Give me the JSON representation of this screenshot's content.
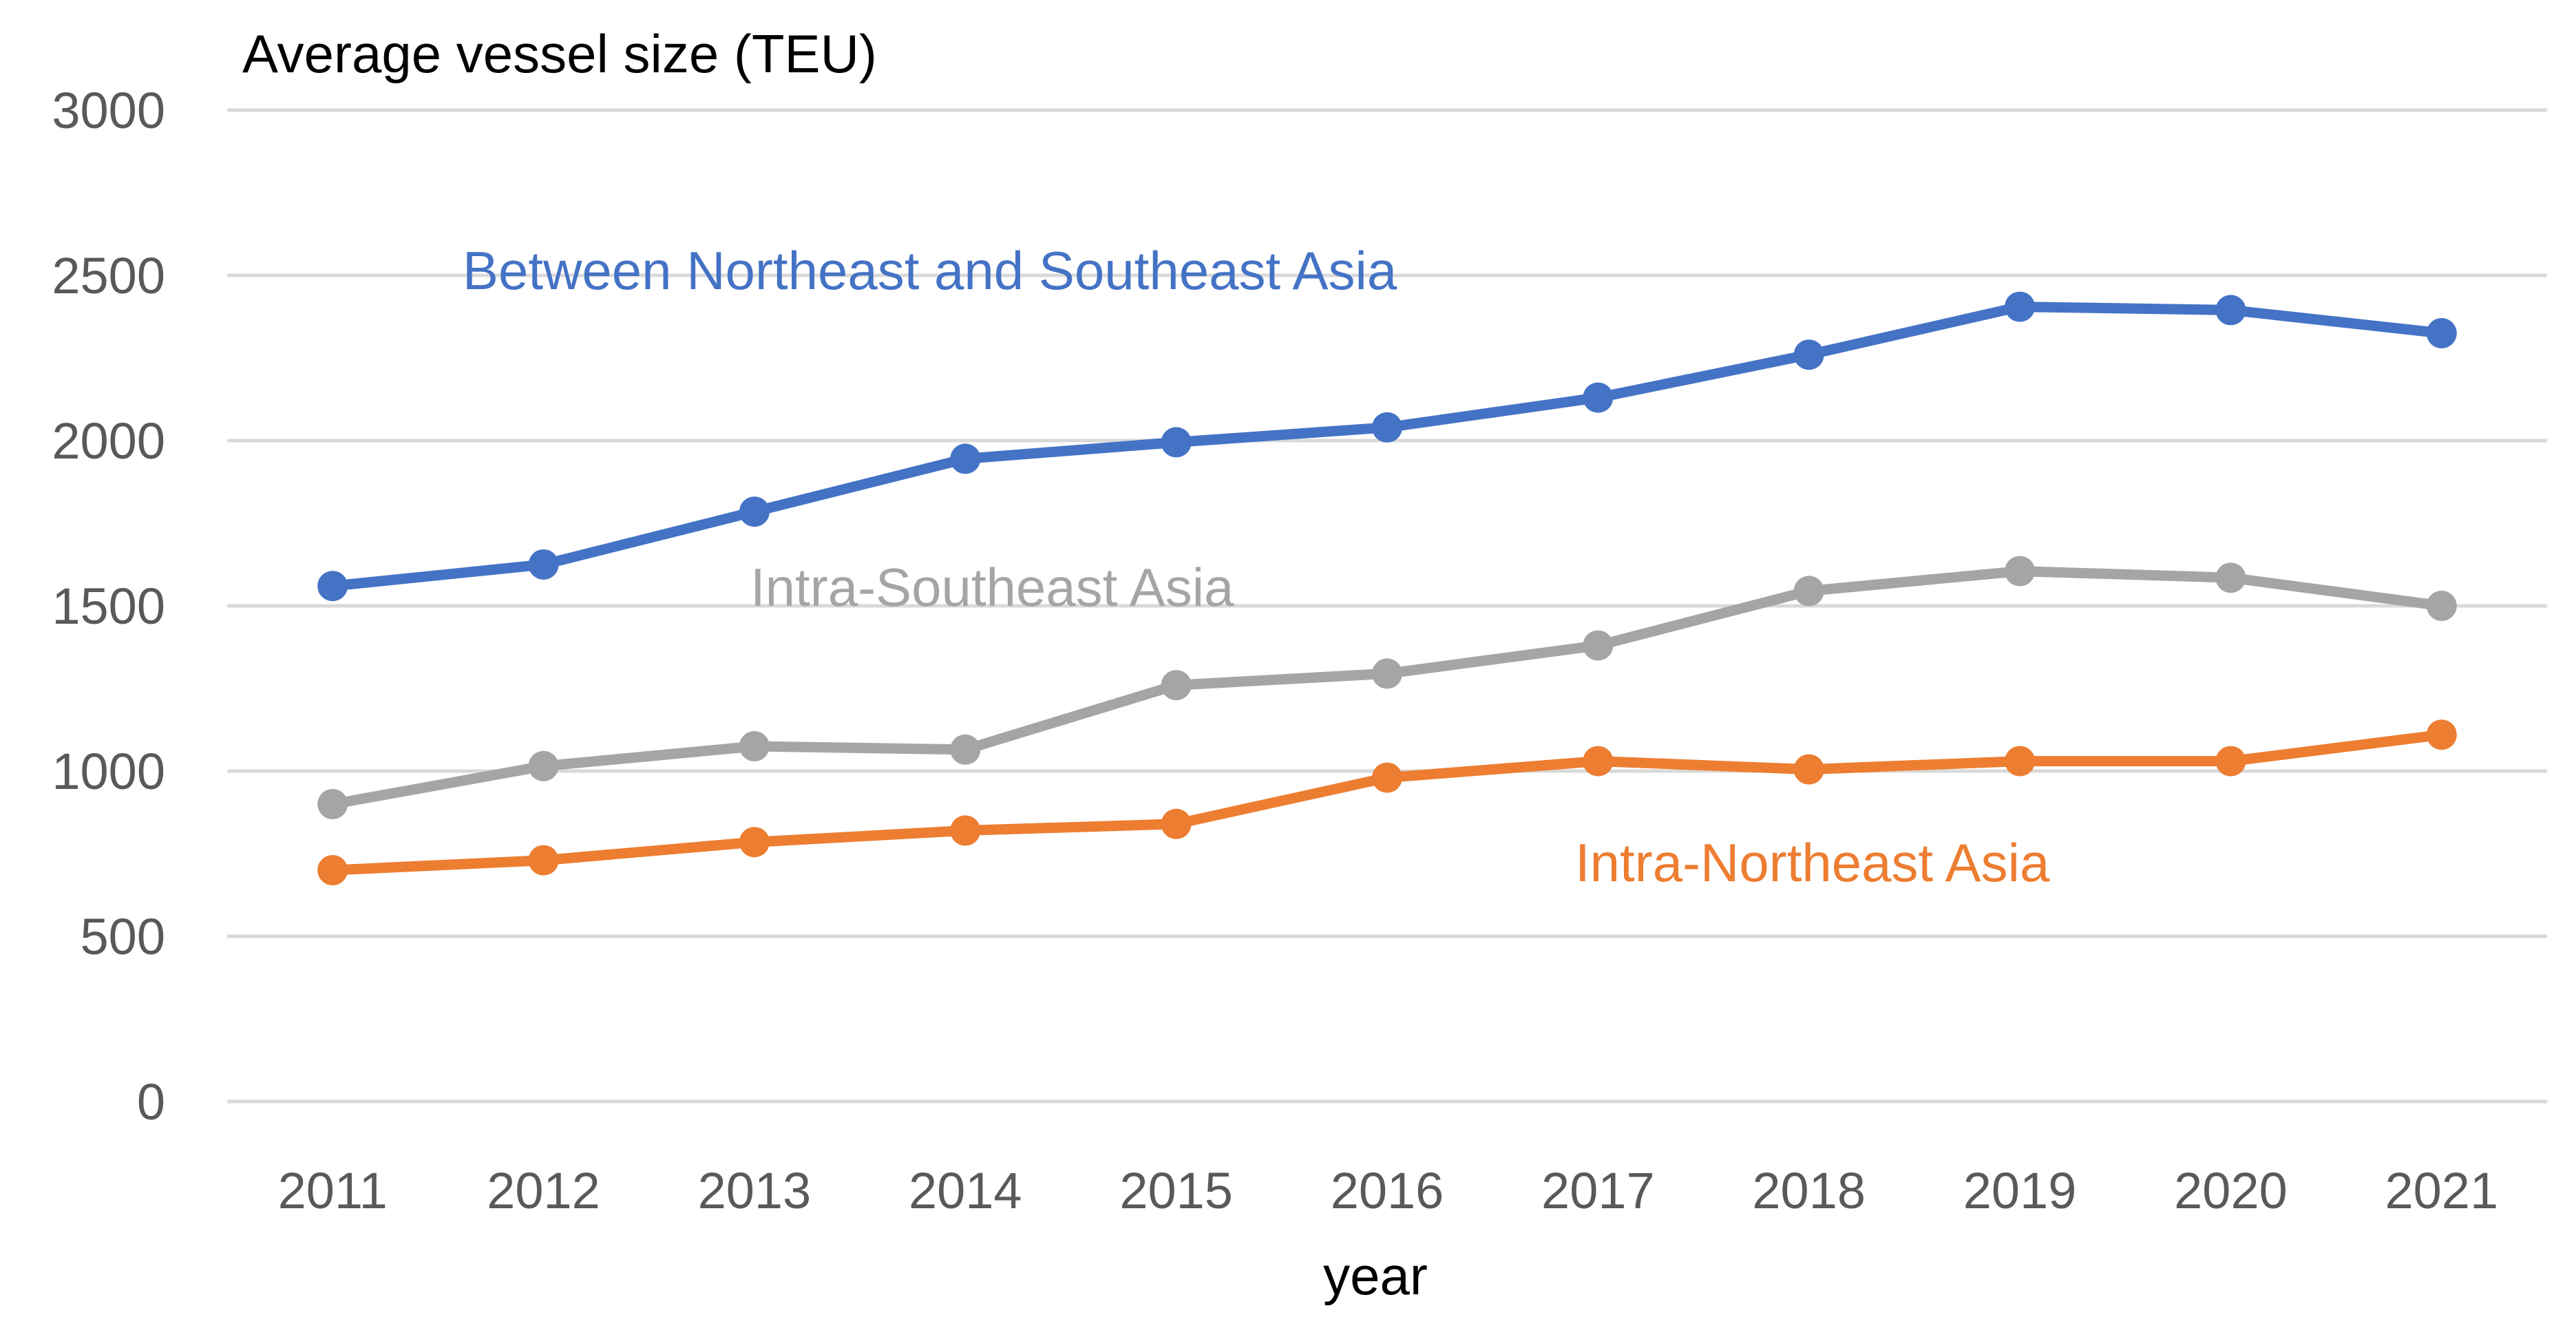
{
  "chart_data": {
    "type": "line",
    "title": "",
    "ylabel": "Average vessel size (TEU)",
    "xlabel": "year",
    "ylim": [
      0,
      3000
    ],
    "yticks": [
      0,
      500,
      1000,
      1500,
      2000,
      2500,
      3000
    ],
    "grid": true,
    "categories": [
      "2011",
      "2012",
      "2013",
      "2014",
      "2015",
      "2016",
      "2017",
      "2018",
      "2019",
      "2020",
      "2021"
    ],
    "series": [
      {
        "name": "Between Northeast and Southeast Asia",
        "color": "#4472c4",
        "values": [
          1560,
          1625,
          1785,
          1945,
          1995,
          2040,
          2130,
          2260,
          2405,
          2395,
          2325
        ]
      },
      {
        "name": "Intra-Southeast Asia",
        "color": "#a5a5a5",
        "values": [
          900,
          1015,
          1075,
          1065,
          1260,
          1295,
          1380,
          1545,
          1605,
          1585,
          1500
        ]
      },
      {
        "name": "Intra-Northeast Asia",
        "color": "#ed7d31",
        "values": [
          700,
          730,
          785,
          820,
          840,
          980,
          1030,
          1005,
          1030,
          1030,
          1110
        ]
      }
    ]
  }
}
